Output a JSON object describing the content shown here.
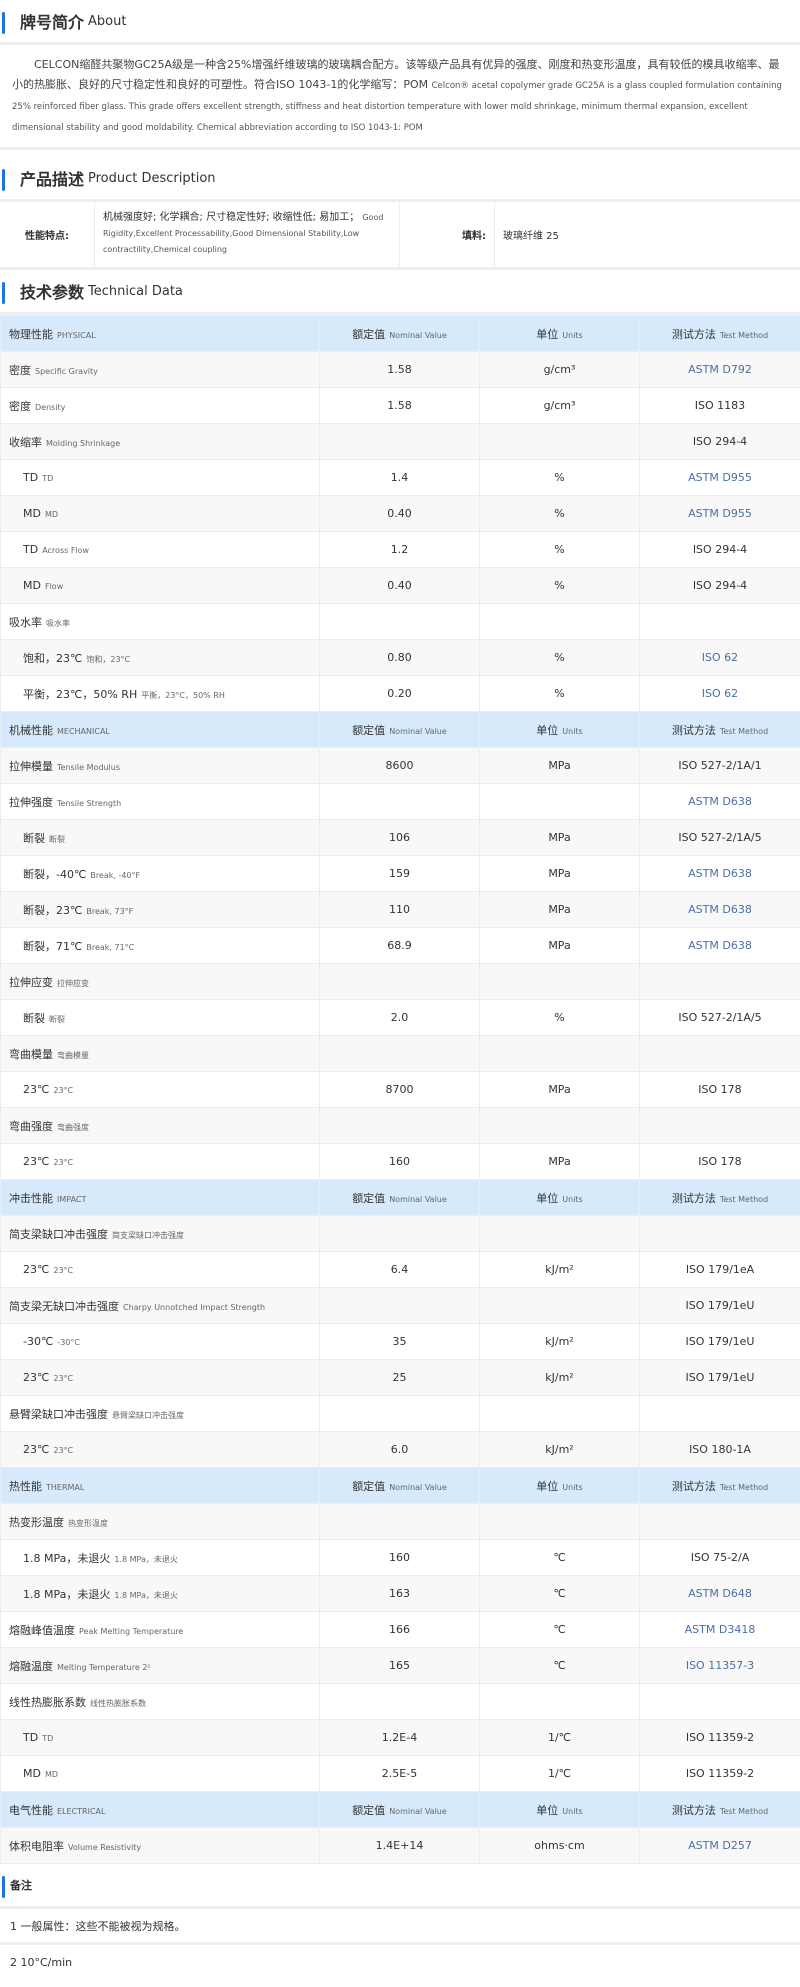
{
  "about": {
    "title_cn": "牌号简介",
    "title_en": "About",
    "text_cn": "CELCON缩醛共聚物GC25A级是一种含25%增强纤维玻璃的玻璃耦合配方。该等级产品具有优异的强度、刚度和热变形温度，具有较低的模具收缩率、最小的热膨胀、良好的尺寸稳定性和良好的可塑性。符合ISO 1043-1的化学缩写：POM",
    "text_en": "Celcon® acetal copolymer grade GC25A is a glass coupled formulation containing 25% reinforced fiber glass. This grade offers excellent strength, stiffness and heat distortion temperature with lower mold shrinkage, minimum thermal expansion, excellent dimensional stability and good moldability. Chemical abbreviation according to ISO 1043-1: POM"
  },
  "product": {
    "title_cn": "产品描述",
    "title_en": "Product Description",
    "feature_label": "性能特点:",
    "feature_cn": "机械强度好; 化学耦合; 尺寸稳定性好; 收缩性低; 易加工；",
    "feature_en": "Good Rigidity,Excellent Processability,Good Dimensional Stability,Low contractility,Chemical coupling",
    "filler_label": "填料:",
    "filler_value": "玻璃纤维 25"
  },
  "tech": {
    "title_cn": "技术参数",
    "title_en": "Technical Data",
    "col_value_cn": "额定值",
    "col_value_en": "Nominal Value",
    "col_unit_cn": "单位",
    "col_unit_en": "Units",
    "col_method_cn": "测试方法",
    "col_method_en": "Test Method",
    "method_link_color": "#4a6fa5",
    "header_bg": "#d6eafc",
    "accent": "#1a73e8",
    "groups": [
      {
        "cn": "物理性能",
        "en": "PHYSICAL",
        "rows": [
          {
            "cn": "密度",
            "en": "Specific Gravity",
            "value": "1.58",
            "unit": "g/cm³",
            "method": "ASTM D792",
            "link": true
          },
          {
            "cn": "密度",
            "en": "Density",
            "value": "1.58",
            "unit": "g/cm³",
            "method": "ISO 1183"
          },
          {
            "cn": "收缩率",
            "en": "Molding Shrinkage",
            "value": "",
            "unit": "",
            "method": "ISO 294-4"
          },
          {
            "cn": "TD",
            "en": "TD",
            "value": "1.4",
            "unit": "%",
            "method": "ASTM D955",
            "link": true,
            "sub": true
          },
          {
            "cn": "MD",
            "en": "MD",
            "value": "0.40",
            "unit": "%",
            "method": "ASTM D955",
            "link": true,
            "sub": true
          },
          {
            "cn": "TD",
            "en": "Across Flow",
            "value": "1.2",
            "unit": "%",
            "method": "ISO 294-4",
            "sub": true
          },
          {
            "cn": "MD",
            "en": "Flow",
            "value": "0.40",
            "unit": "%",
            "method": "ISO 294-4",
            "sub": true
          },
          {
            "cn": "吸水率",
            "en": "吸水率",
            "value": "",
            "unit": "",
            "method": ""
          },
          {
            "cn": "饱和，23℃",
            "en": "饱和，23°C",
            "value": "0.80",
            "unit": "%",
            "method": "ISO 62",
            "link": true,
            "sub": true
          },
          {
            "cn": "平衡，23℃，50% RH",
            "en": "平衡，23°C，50% RH",
            "value": "0.20",
            "unit": "%",
            "method": "ISO 62",
            "link": true,
            "sub": true
          }
        ]
      },
      {
        "cn": "机械性能",
        "en": "MECHANICAL",
        "rows": [
          {
            "cn": "拉伸模量",
            "en": "Tensile Modulus",
            "value": "8600",
            "unit": "MPa",
            "method": "ISO 527-2/1A/1"
          },
          {
            "cn": "拉伸强度",
            "en": "Tensile Strength",
            "value": "",
            "unit": "",
            "method": "ASTM D638",
            "link": true
          },
          {
            "cn": "断裂",
            "en": "断裂",
            "value": "106",
            "unit": "MPa",
            "method": "ISO 527-2/1A/5",
            "sub": true
          },
          {
            "cn": "断裂，-40℃",
            "en": "Break, -40°F",
            "value": "159",
            "unit": "MPa",
            "method": "ASTM D638",
            "link": true,
            "sub": true
          },
          {
            "cn": "断裂，23℃",
            "en": "Break, 73°F",
            "value": "110",
            "unit": "MPa",
            "method": "ASTM D638",
            "link": true,
            "sub": true
          },
          {
            "cn": "断裂，71℃",
            "en": "Break, 71°C",
            "value": "68.9",
            "unit": "MPa",
            "method": "ASTM D638",
            "link": true,
            "sub": true
          },
          {
            "cn": "拉伸应变",
            "en": "拉伸应变",
            "value": "",
            "unit": "",
            "method": ""
          },
          {
            "cn": "断裂",
            "en": "断裂",
            "value": "2.0",
            "unit": "%",
            "method": "ISO 527-2/1A/5",
            "sub": true
          },
          {
            "cn": "弯曲模量",
            "en": "弯曲模量",
            "value": "",
            "unit": "",
            "method": ""
          },
          {
            "cn": "23℃",
            "en": "23°C",
            "value": "8700",
            "unit": "MPa",
            "method": "ISO 178",
            "sub": true
          },
          {
            "cn": "弯曲强度",
            "en": "弯曲强度",
            "value": "",
            "unit": "",
            "method": ""
          },
          {
            "cn": "23℃",
            "en": "23°C",
            "value": "160",
            "unit": "MPa",
            "method": "ISO 178",
            "sub": true
          }
        ]
      },
      {
        "cn": "冲击性能",
        "en": "IMPACT",
        "rows": [
          {
            "cn": "简支梁缺口冲击强度",
            "en": "简支梁缺口冲击强度",
            "value": "",
            "unit": "",
            "method": ""
          },
          {
            "cn": "23℃",
            "en": "23°C",
            "value": "6.4",
            "unit": "kJ/m²",
            "method": "ISO 179/1eA",
            "sub": true
          },
          {
            "cn": "简支梁无缺口冲击强度",
            "en": "Charpy Unnotched Impact Strength",
            "value": "",
            "unit": "",
            "method": "ISO 179/1eU"
          },
          {
            "cn": "-30℃",
            "en": "-30°C",
            "value": "35",
            "unit": "kJ/m²",
            "method": "ISO 179/1eU",
            "sub": true
          },
          {
            "cn": "23℃",
            "en": "23°C",
            "value": "25",
            "unit": "kJ/m²",
            "method": "ISO 179/1eU",
            "sub": true
          },
          {
            "cn": "悬臂梁缺口冲击强度",
            "en": "悬臂梁缺口冲击强度",
            "value": "",
            "unit": "",
            "method": ""
          },
          {
            "cn": "23℃",
            "en": "23°C",
            "value": "6.0",
            "unit": "kJ/m²",
            "method": "ISO 180-1A",
            "sub": true
          }
        ]
      },
      {
        "cn": "热性能",
        "en": "THERMAL",
        "rows": [
          {
            "cn": "热变形温度",
            "en": "热变形温度",
            "value": "",
            "unit": "",
            "method": ""
          },
          {
            "cn": "1.8 MPa，未退火",
            "en": "1.8 MPa，未退火",
            "value": "160",
            "unit": "℃",
            "method": "ISO 75-2/A",
            "sub": true
          },
          {
            "cn": "1.8 MPa，未退火",
            "en": "1.8 MPa，未退火",
            "value": "163",
            "unit": "℃",
            "method": "ASTM D648",
            "link": true,
            "sub": true
          },
          {
            "cn": "熔融峰值温度",
            "en": "Peak Melting Temperature",
            "value": "166",
            "unit": "℃",
            "method": "ASTM D3418",
            "link": true
          },
          {
            "cn": "熔融温度",
            "en": "Melting Temperature  2²",
            "value": "165",
            "unit": "℃",
            "method": "ISO 11357-3",
            "link": true
          },
          {
            "cn": "线性热膨胀系数",
            "en": "线性热膨胀系数",
            "value": "",
            "unit": "",
            "method": ""
          },
          {
            "cn": "TD",
            "en": "TD",
            "value": "1.2E-4",
            "unit": "1/℃",
            "method": "ISO 11359-2",
            "sub": true
          },
          {
            "cn": "MD",
            "en": "MD",
            "value": "2.5E-5",
            "unit": "1/℃",
            "method": "ISO 11359-2",
            "sub": true
          }
        ]
      },
      {
        "cn": "电气性能",
        "en": "ELECTRICAL",
        "rows": [
          {
            "cn": "体积电阻率",
            "en": "Volume Resistivity",
            "value": "1.4E+14",
            "unit": "ohms·cm",
            "method": "ASTM D257",
            "link": true
          }
        ]
      }
    ]
  },
  "notes": {
    "title": "备注",
    "items": [
      "1 一般属性：这些不能被视为规格。",
      "2 10°C/min"
    ]
  }
}
